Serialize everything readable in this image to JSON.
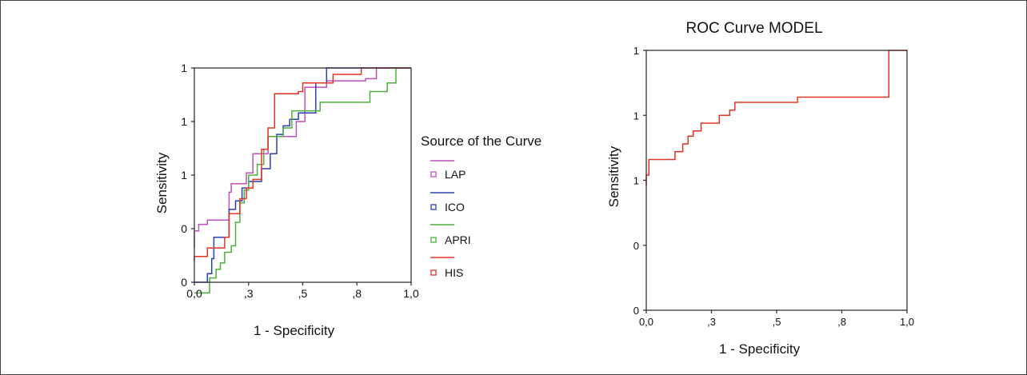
{
  "chart_data": [
    {
      "type": "line",
      "title": "",
      "xlabel": "1 - Specificity",
      "ylabel": "Sensitivity",
      "xlim": [
        0,
        1
      ],
      "ylim": [
        0,
        1
      ],
      "xticks": [
        {
          "value": 0.0,
          "label": "0,0"
        },
        {
          "value": 0.25,
          "label": ",3"
        },
        {
          "value": 0.5,
          "label": ",5"
        },
        {
          "value": 0.75,
          "label": ",8"
        },
        {
          "value": 1.0,
          "label": "1,0"
        }
      ],
      "yticks": [
        {
          "value": 0.0,
          "label": "0"
        },
        {
          "value": 0.25,
          "label": "0"
        },
        {
          "value": 0.5,
          "label": "1"
        },
        {
          "value": 0.75,
          "label": "1"
        },
        {
          "value": 1.0,
          "label": "1"
        }
      ],
      "grid": false,
      "legend": {
        "title": "Source of the Curve",
        "placement": "right"
      },
      "series": [
        {
          "name": "LAP",
          "color": "#c04ec0",
          "points": [
            [
              0,
              0.16
            ],
            [
              0,
              0.24
            ],
            [
              0.02,
              0.24
            ],
            [
              0.02,
              0.27
            ],
            [
              0.06,
              0.27
            ],
            [
              0.06,
              0.29
            ],
            [
              0.16,
              0.29
            ],
            [
              0.16,
              0.42
            ],
            [
              0.17,
              0.42
            ],
            [
              0.17,
              0.46
            ],
            [
              0.24,
              0.46
            ],
            [
              0.24,
              0.51
            ],
            [
              0.27,
              0.51
            ],
            [
              0.27,
              0.6
            ],
            [
              0.34,
              0.6
            ],
            [
              0.34,
              0.68
            ],
            [
              0.47,
              0.68
            ],
            [
              0.47,
              0.75
            ],
            [
              0.51,
              0.75
            ],
            [
              0.51,
              0.91
            ],
            [
              0.61,
              0.91
            ],
            [
              0.61,
              0.94
            ],
            [
              0.79,
              0.94
            ],
            [
              0.79,
              0.95
            ],
            [
              0.84,
              0.95
            ],
            [
              0.84,
              1
            ],
            [
              1,
              1
            ]
          ]
        },
        {
          "name": "ICO",
          "color": "#2c3fb0",
          "points": [
            [
              0,
              0
            ],
            [
              0.06,
              0
            ],
            [
              0.06,
              0.04
            ],
            [
              0.08,
              0.04
            ],
            [
              0.08,
              0.11
            ],
            [
              0.09,
              0.11
            ],
            [
              0.09,
              0.21
            ],
            [
              0.16,
              0.21
            ],
            [
              0.16,
              0.34
            ],
            [
              0.19,
              0.34
            ],
            [
              0.19,
              0.38
            ],
            [
              0.22,
              0.38
            ],
            [
              0.22,
              0.44
            ],
            [
              0.25,
              0.44
            ],
            [
              0.25,
              0.47
            ],
            [
              0.31,
              0.47
            ],
            [
              0.31,
              0.53
            ],
            [
              0.35,
              0.53
            ],
            [
              0.35,
              0.6
            ],
            [
              0.38,
              0.6
            ],
            [
              0.38,
              0.69
            ],
            [
              0.41,
              0.69
            ],
            [
              0.41,
              0.73
            ],
            [
              0.44,
              0.73
            ],
            [
              0.44,
              0.76
            ],
            [
              0.48,
              0.76
            ],
            [
              0.48,
              0.79
            ],
            [
              0.56,
              0.79
            ],
            [
              0.56,
              0.93
            ],
            [
              0.61,
              0.93
            ],
            [
              0.61,
              1
            ],
            [
              1,
              1
            ]
          ]
        },
        {
          "name": "APRI",
          "color": "#4caf3c",
          "points": [
            [
              0,
              -0.05
            ],
            [
              0.07,
              -0.05
            ],
            [
              0.07,
              0.02
            ],
            [
              0.1,
              0.02
            ],
            [
              0.1,
              0.06
            ],
            [
              0.12,
              0.06
            ],
            [
              0.12,
              0.09
            ],
            [
              0.14,
              0.09
            ],
            [
              0.14,
              0.14
            ],
            [
              0.17,
              0.14
            ],
            [
              0.17,
              0.17
            ],
            [
              0.19,
              0.17
            ],
            [
              0.19,
              0.28
            ],
            [
              0.21,
              0.28
            ],
            [
              0.21,
              0.37
            ],
            [
              0.23,
              0.37
            ],
            [
              0.23,
              0.43
            ],
            [
              0.25,
              0.43
            ],
            [
              0.25,
              0.5
            ],
            [
              0.29,
              0.5
            ],
            [
              0.29,
              0.55
            ],
            [
              0.32,
              0.55
            ],
            [
              0.32,
              0.62
            ],
            [
              0.34,
              0.62
            ],
            [
              0.34,
              0.68
            ],
            [
              0.41,
              0.68
            ],
            [
              0.41,
              0.72
            ],
            [
              0.45,
              0.72
            ],
            [
              0.45,
              0.8
            ],
            [
              0.58,
              0.8
            ],
            [
              0.58,
              0.84
            ],
            [
              0.81,
              0.84
            ],
            [
              0.81,
              0.89
            ],
            [
              0.89,
              0.89
            ],
            [
              0.89,
              0.93
            ],
            [
              0.93,
              0.93
            ],
            [
              0.93,
              1
            ],
            [
              1,
              1
            ]
          ]
        },
        {
          "name": "HIS",
          "color": "#e53322",
          "points": [
            [
              0,
              0.1
            ],
            [
              0,
              0.12
            ],
            [
              0.06,
              0.12
            ],
            [
              0.06,
              0.16
            ],
            [
              0.14,
              0.16
            ],
            [
              0.14,
              0.21
            ],
            [
              0.16,
              0.21
            ],
            [
              0.16,
              0.32
            ],
            [
              0.21,
              0.32
            ],
            [
              0.21,
              0.39
            ],
            [
              0.24,
              0.39
            ],
            [
              0.24,
              0.44
            ],
            [
              0.27,
              0.44
            ],
            [
              0.27,
              0.48
            ],
            [
              0.31,
              0.48
            ],
            [
              0.31,
              0.62
            ],
            [
              0.34,
              0.62
            ],
            [
              0.34,
              0.72
            ],
            [
              0.37,
              0.72
            ],
            [
              0.37,
              0.88
            ],
            [
              0.48,
              0.88
            ],
            [
              0.48,
              0.89
            ],
            [
              0.5,
              0.89
            ],
            [
              0.5,
              0.93
            ],
            [
              0.64,
              0.93
            ],
            [
              0.64,
              0.97
            ],
            [
              0.77,
              0.97
            ],
            [
              0.77,
              1
            ],
            [
              1,
              1
            ]
          ]
        }
      ]
    },
    {
      "type": "line",
      "title": "ROC Curve MODEL",
      "xlabel": "1 - Specificity",
      "ylabel": "Sensitivity",
      "xlim": [
        0,
        1
      ],
      "ylim": [
        0,
        1
      ],
      "xticks": [
        {
          "value": 0.0,
          "label": "0,0"
        },
        {
          "value": 0.25,
          "label": ",3"
        },
        {
          "value": 0.5,
          "label": ",5"
        },
        {
          "value": 0.75,
          "label": ",8"
        },
        {
          "value": 1.0,
          "label": "1,0"
        }
      ],
      "yticks": [
        {
          "value": 0.0,
          "label": "0"
        },
        {
          "value": 0.25,
          "label": "0"
        },
        {
          "value": 0.5,
          "label": "1"
        },
        {
          "value": 0.75,
          "label": "1"
        },
        {
          "value": 1.0,
          "label": "1"
        }
      ],
      "grid": false,
      "legend": null,
      "series": [
        {
          "color": "#e53322",
          "points": [
            [
              0,
              0.48
            ],
            [
              0,
              0.52
            ],
            [
              0.01,
              0.52
            ],
            [
              0.01,
              0.58
            ],
            [
              0.11,
              0.58
            ],
            [
              0.11,
              0.61
            ],
            [
              0.14,
              0.61
            ],
            [
              0.14,
              0.64
            ],
            [
              0.16,
              0.64
            ],
            [
              0.16,
              0.67
            ],
            [
              0.18,
              0.67
            ],
            [
              0.18,
              0.69
            ],
            [
              0.21,
              0.69
            ],
            [
              0.21,
              0.72
            ],
            [
              0.28,
              0.72
            ],
            [
              0.28,
              0.75
            ],
            [
              0.32,
              0.75
            ],
            [
              0.32,
              0.77
            ],
            [
              0.34,
              0.77
            ],
            [
              0.34,
              0.8
            ],
            [
              0.58,
              0.8
            ],
            [
              0.58,
              0.82
            ],
            [
              0.93,
              0.82
            ],
            [
              0.93,
              1
            ],
            [
              1,
              1
            ]
          ]
        }
      ]
    }
  ]
}
